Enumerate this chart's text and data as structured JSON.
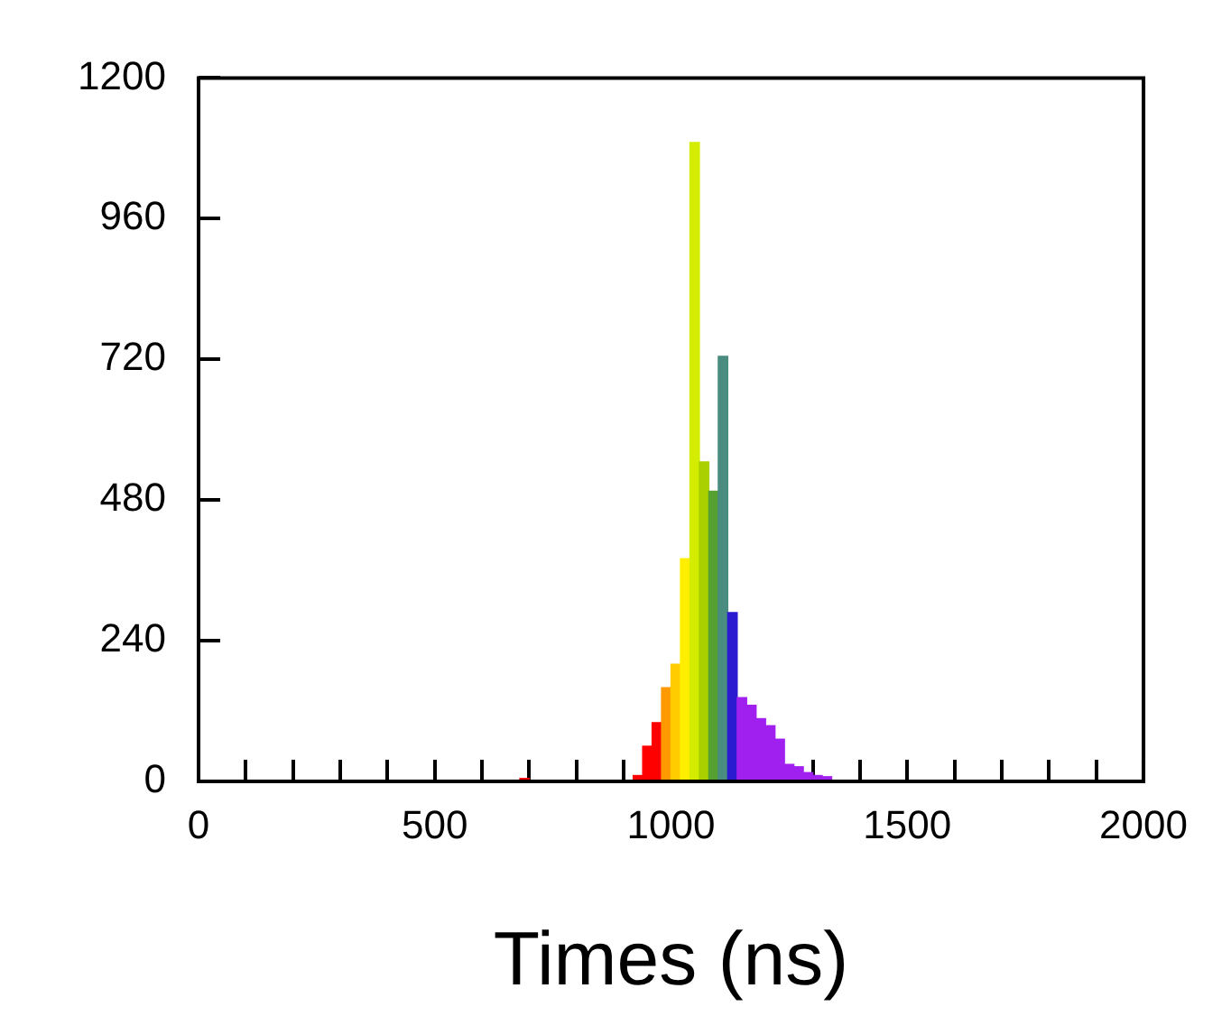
{
  "chart_data": {
    "type": "histogram",
    "xlabel": "Times (ns)",
    "bins": [
      680,
      700,
      720,
      740,
      760,
      780,
      800,
      820,
      840,
      860,
      880,
      900,
      920,
      940,
      960,
      980,
      1000,
      1020,
      1040,
      1060,
      1080,
      1100,
      1120,
      1140,
      1160,
      1180,
      1200,
      1220,
      1240,
      1260,
      1280,
      1300,
      1320,
      1340
    ],
    "values": [
      5,
      0,
      0,
      0,
      0,
      0,
      0,
      0,
      0,
      0,
      0,
      0,
      10,
      60,
      100,
      160,
      200,
      380,
      1090,
      545,
      495,
      725,
      288,
      143,
      130,
      107,
      95,
      72,
      29,
      25,
      15,
      10,
      8
    ],
    "colors": [
      "#ff0000",
      "#ff0000",
      "#ff0000",
      "#ff0000",
      "#ff0000",
      "#ff0000",
      "#ff0000",
      "#ff0000",
      "#ff0000",
      "#ff0000",
      "#ff0000",
      "#ff0000",
      "#ff0000",
      "#ff0000",
      "#ff0000",
      "#ff9900",
      "#ffcc00",
      "#ffee00",
      "#d4ec00",
      "#aad000",
      "#55a030",
      "#4a8c80",
      "#2a1ad0",
      "#a020f0",
      "#a020f0",
      "#a020f0",
      "#a020f0",
      "#a020f0",
      "#a020f0",
      "#a020f0",
      "#a020f0",
      "#a020f0",
      "#a020f0"
    ],
    "xlim": [
      0,
      2000
    ],
    "xticks": [
      0,
      {
        "value": 100,
        "label": null
      },
      {
        "value": 200,
        "label": null
      },
      {
        "value": 300,
        "label": null
      },
      {
        "value": 400,
        "label": null
      },
      500,
      {
        "value": 600,
        "label": null
      },
      {
        "value": 700,
        "label": null
      },
      {
        "value": 800,
        "label": null
      },
      {
        "value": 900,
        "label": null
      },
      1000,
      {
        "value": 1100,
        "label": null
      },
      {
        "value": 1200,
        "label": null
      },
      {
        "value": 1300,
        "label": null
      },
      {
        "value": 1400,
        "label": null
      },
      1500,
      {
        "value": 1600,
        "label": null
      },
      {
        "value": 1700,
        "label": null
      },
      {
        "value": 1800,
        "label": null
      },
      {
        "value": 1900,
        "label": null
      },
      2000
    ],
    "ylim": [
      0,
      1200
    ],
    "yticks": [
      0,
      240,
      480,
      720,
      960,
      1200
    ],
    "grid": false,
    "legend": false
  }
}
